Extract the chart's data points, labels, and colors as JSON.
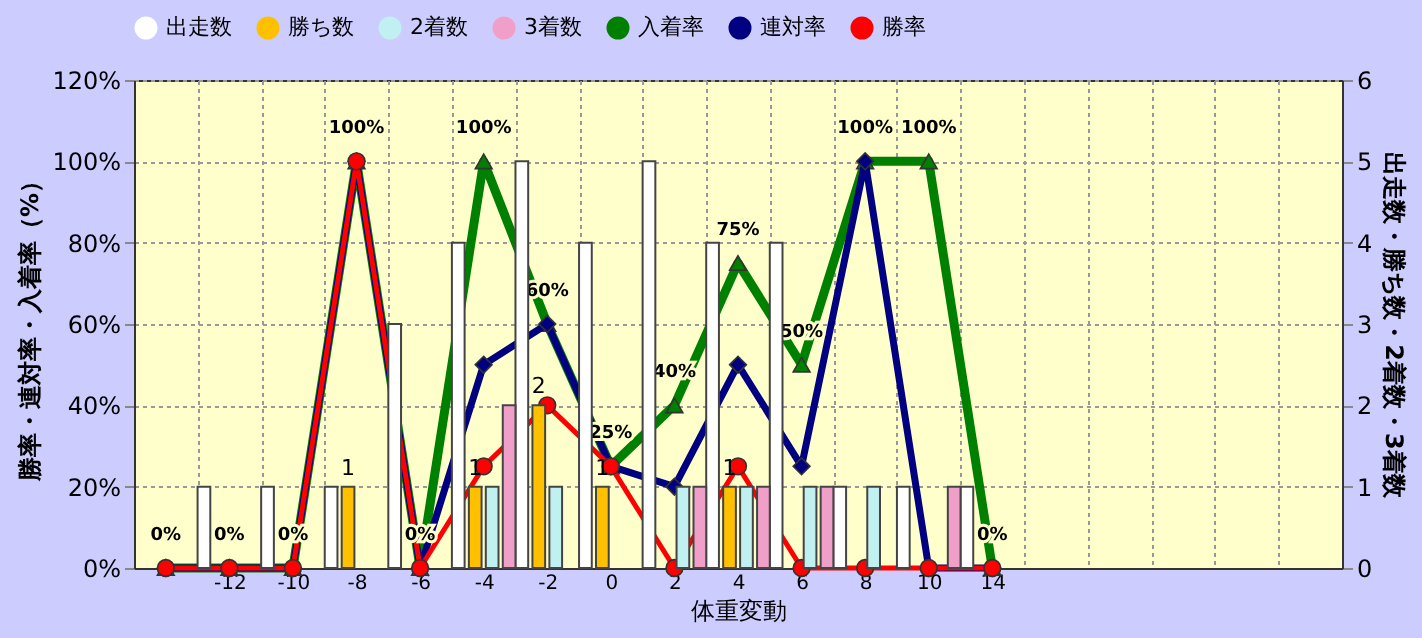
{
  "chart_data": {
    "type": "bar",
    "xlabel": "体重変動",
    "ylabel": "勝率・連対率・入着率（%）",
    "y2label": "出走数・勝ち数・2着数・3着数",
    "categories": [
      null,
      "-12",
      "-10",
      "-8",
      "-6",
      "-4",
      "-2",
      "0",
      "2",
      "4",
      "6",
      "8",
      "10",
      "14",
      null,
      null,
      null,
      null,
      null
    ],
    "series": [
      {
        "name": "出走数",
        "axis": "y2",
        "color": "#ffffff",
        "values": [
          null,
          1,
          1,
          1,
          3,
          4,
          5,
          4,
          5,
          4,
          4,
          1,
          1,
          1,
          null,
          null,
          null,
          null,
          null
        ]
      },
      {
        "name": "勝ち数",
        "axis": "y2",
        "color": "#ffc000",
        "values": [
          null,
          null,
          null,
          1,
          null,
          1,
          2,
          1,
          null,
          1,
          null,
          null,
          null,
          null,
          null,
          null,
          null,
          null,
          null
        ],
        "value_labels": [
          null,
          null,
          null,
          "1",
          null,
          "1",
          "2",
          "1",
          null,
          "1",
          null,
          null,
          null,
          null,
          null,
          null,
          null,
          null,
          null
        ]
      },
      {
        "name": "2着数",
        "axis": "y2",
        "color": "#c0f0f0",
        "values": [
          null,
          null,
          null,
          null,
          null,
          1,
          1,
          null,
          1,
          1,
          1,
          1,
          null,
          null,
          null,
          null,
          null,
          null,
          null
        ]
      },
      {
        "name": "3着数",
        "axis": "y2",
        "color": "#f0a0c8",
        "values": [
          null,
          null,
          null,
          null,
          null,
          2,
          null,
          null,
          1,
          1,
          1,
          null,
          1,
          null,
          null,
          null,
          null,
          null,
          null
        ]
      },
      {
        "name": "入着率",
        "type": "line",
        "marker": "triangle",
        "color": "#008000",
        "values": [
          0,
          0,
          0,
          100,
          0,
          100,
          60,
          25,
          40,
          75,
          50,
          100,
          100,
          0,
          null,
          null,
          null,
          null,
          null
        ],
        "value_labels": [
          "0%",
          "0%",
          "0%",
          "100%",
          "0%",
          "100%",
          "60%",
          "25%",
          "40%",
          "75%",
          "50%",
          "100%",
          "100%",
          "0%",
          null,
          null,
          null,
          null,
          null
        ]
      },
      {
        "name": "連対率",
        "type": "line",
        "marker": "diamond",
        "color": "#000080",
        "values": [
          0,
          0,
          0,
          100,
          0,
          50,
          60,
          25,
          20,
          50,
          25,
          100,
          0,
          0,
          null,
          null,
          null,
          null,
          null
        ]
      },
      {
        "name": "勝率",
        "type": "line",
        "marker": "circle",
        "color": "#ff0000",
        "values": [
          0,
          0,
          0,
          100,
          0,
          25,
          40,
          25,
          0,
          25,
          0,
          0,
          0,
          0,
          null,
          null,
          null,
          null,
          null
        ]
      }
    ],
    "ylim": [
      0,
      120
    ],
    "yticks": [
      {
        "value": 0,
        "label": "0%"
      },
      {
        "value": 20,
        "label": "20%"
      },
      {
        "value": 40,
        "label": "40%"
      },
      {
        "value": 60,
        "label": "60%"
      },
      {
        "value": 80,
        "label": "80%"
      },
      {
        "value": 100,
        "label": "100%"
      },
      {
        "value": 120,
        "label": "120%"
      }
    ],
    "y2lim": [
      0,
      6
    ],
    "y2ticks": [
      0,
      1,
      2,
      3,
      4,
      5,
      6
    ],
    "grid": true,
    "legend": "top",
    "line_style": "solid"
  }
}
